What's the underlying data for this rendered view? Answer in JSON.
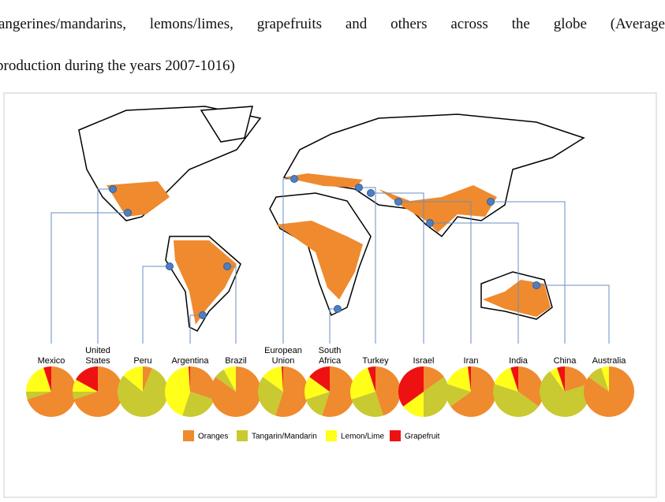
{
  "text_lines": [
    "angerines/mandarins, lemons/limes, grapefruits and others across the globe (Average",
    "production during the years 2007-1016)"
  ],
  "figure": {
    "legend": [
      {
        "name": "Oranges",
        "color": "#ef8a2e"
      },
      {
        "name": "Tangarin/Mandarin",
        "color": "#c9c931"
      },
      {
        "name": "Lemon/Lime",
        "color": "#ffff1a"
      },
      {
        "name": "Grapefruit",
        "color": "#ee1111"
      }
    ],
    "countries": [
      {
        "name_lines": [
          "Mexico"
        ],
        "values": [
          70,
          5,
          20,
          5
        ]
      },
      {
        "name_lines": [
          "United",
          "States"
        ],
        "values": [
          70,
          5,
          8,
          17
        ]
      },
      {
        "name_lines": [
          "Peru"
        ],
        "values": [
          6,
          80,
          14,
          0
        ]
      },
      {
        "name_lines": [
          "Argentina"
        ],
        "values": [
          30,
          25,
          44,
          1
        ]
      },
      {
        "name_lines": [
          "Brazil"
        ],
        "values": [
          85,
          7,
          8,
          0
        ]
      },
      {
        "name_lines": [
          "European",
          "Union"
        ],
        "values": [
          55,
          30,
          14,
          1
        ]
      },
      {
        "name_lines": [
          "South",
          "Africa"
        ],
        "values": [
          55,
          15,
          15,
          15
        ]
      },
      {
        "name_lines": [
          "Turkey"
        ],
        "values": [
          45,
          25,
          25,
          5
        ]
      },
      {
        "name_lines": [
          "Israel"
        ],
        "values": [
          15,
          35,
          15,
          35
        ]
      },
      {
        "name_lines": [
          "Iran"
        ],
        "values": [
          65,
          15,
          18,
          2
        ]
      },
      {
        "name_lines": [
          "India"
        ],
        "values": [
          35,
          45,
          15,
          5
        ]
      },
      {
        "name_lines": [
          "China"
        ],
        "values": [
          20,
          70,
          5,
          5
        ]
      },
      {
        "name_lines": [
          "Australia"
        ],
        "values": [
          85,
          10,
          5,
          0
        ]
      }
    ]
  }
}
